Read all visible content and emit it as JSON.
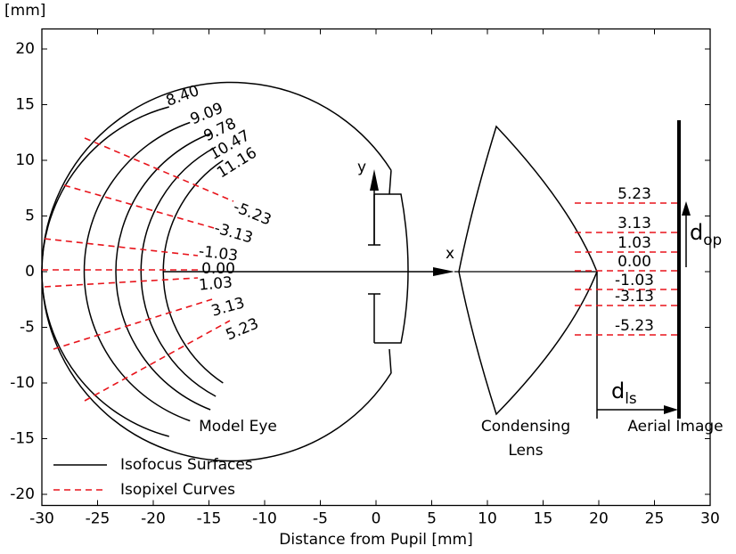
{
  "chart_data": {
    "type": "optics",
    "xlabel": "Distance from Pupil [mm]",
    "ylabel": "[mm]",
    "xlim": [
      -30,
      30
    ],
    "ylim": [
      -21,
      21.8
    ],
    "xticks": [
      -30,
      -25,
      -20,
      -15,
      -10,
      -5,
      0,
      5,
      10,
      15,
      20,
      25,
      30
    ],
    "yticks": [
      -20,
      -15,
      -10,
      -5,
      0,
      5,
      10,
      15,
      20
    ],
    "series": [
      {
        "name": "Isofocus Surfaces",
        "color": "#000000",
        "dash": false
      },
      {
        "name": "Isopixel Curves",
        "color": "#e8141b",
        "dash": true
      }
    ],
    "isofocus_labels": [
      "8.40",
      "9.09",
      "9.78",
      "10.47",
      "11.16"
    ],
    "eye_isopixel_labels": [
      "-5.23",
      "-3.13",
      "-1.03",
      "0.00",
      "1.03",
      "3.13",
      "5.23"
    ],
    "image_isopixel_labels": [
      "5.23",
      "3.13",
      "1.03",
      "0.00",
      "-1.03",
      "-3.13",
      "-5.23"
    ],
    "annotations": {
      "model_eye": "Model Eye",
      "condensing_lens": [
        "Condensing",
        "Lens"
      ],
      "aerial_image": "Aerial Image",
      "x_axis": "x",
      "y_axis": "y",
      "d_ls": {
        "main": "d",
        "sub": "ls"
      },
      "d_op": {
        "main": "d",
        "sub": "op"
      }
    }
  }
}
